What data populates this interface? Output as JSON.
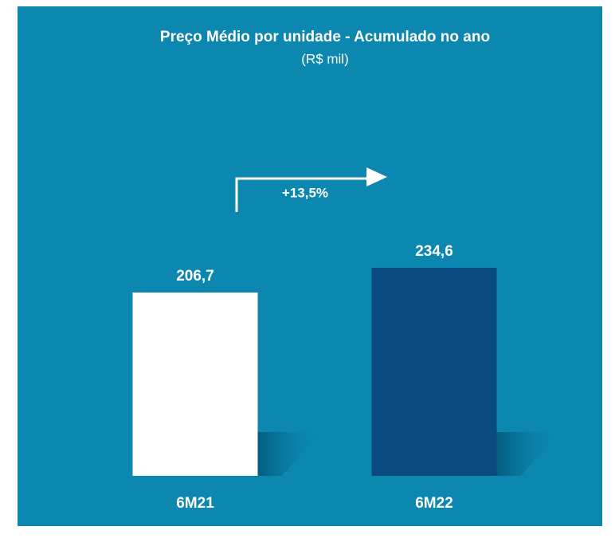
{
  "chart_data": {
    "type": "bar",
    "title": "Preço Médio por unidade - Acumulado  no ano",
    "subtitle": "(R$ mil)",
    "categories": [
      "6M21",
      "6M22"
    ],
    "values": [
      206.7,
      234.6
    ],
    "value_labels": [
      "206,7",
      "234,6"
    ],
    "colors": [
      "#ffffff",
      "#0a4a80"
    ],
    "annotation": "+13,5%"
  }
}
